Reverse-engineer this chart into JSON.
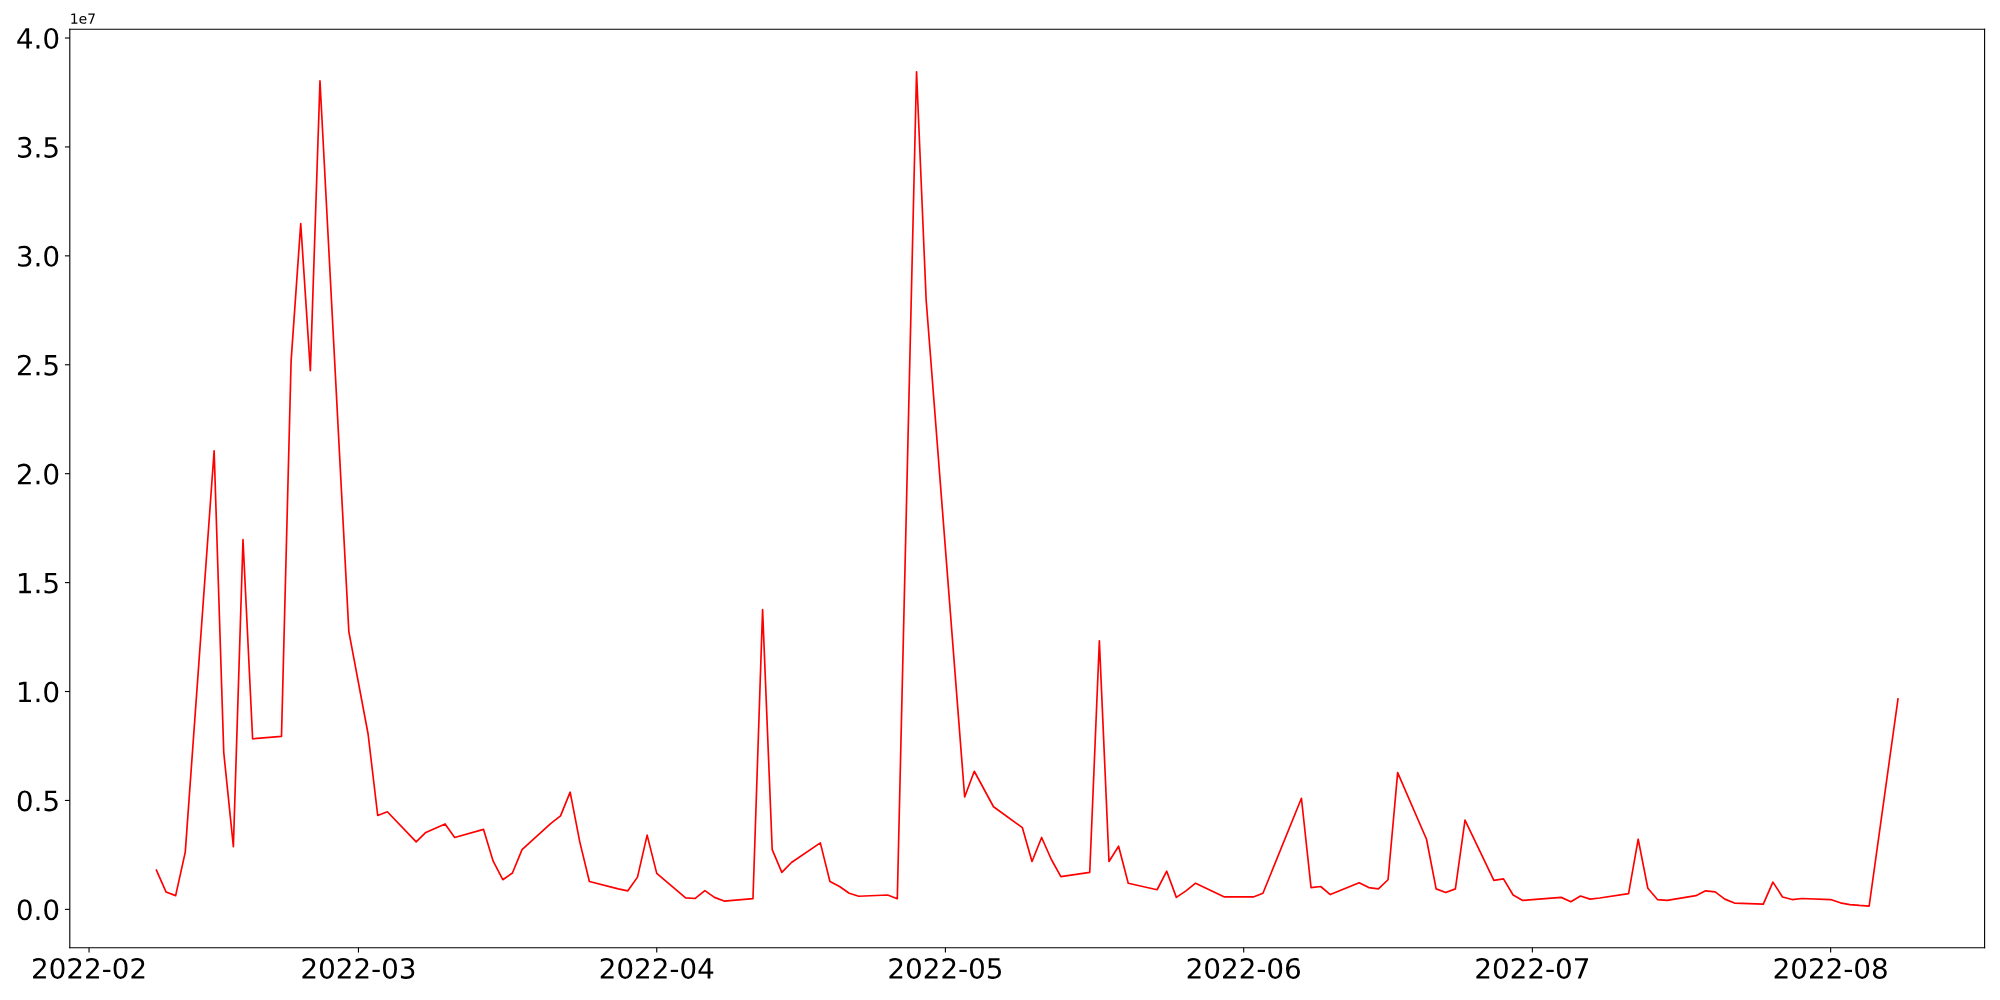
{
  "chart_data": {
    "type": "line",
    "x": [
      "2022-02-08",
      "2022-02-09",
      "2022-02-10",
      "2022-02-11",
      "2022-02-14",
      "2022-02-15",
      "2022-02-16",
      "2022-02-17",
      "2022-02-18",
      "2022-02-21",
      "2022-02-22",
      "2022-02-23",
      "2022-02-24",
      "2022-02-25",
      "2022-02-28",
      "2022-03-02",
      "2022-03-03",
      "2022-03-04",
      "2022-03-07",
      "2022-03-08",
      "2022-03-10",
      "2022-03-11",
      "2022-03-14",
      "2022-03-15",
      "2022-03-16",
      "2022-03-17",
      "2022-03-18",
      "2022-03-21",
      "2022-03-22",
      "2022-03-23",
      "2022-03-24",
      "2022-03-25",
      "2022-03-28",
      "2022-03-29",
      "2022-03-30",
      "2022-03-31",
      "2022-04-01",
      "2022-04-04",
      "2022-04-05",
      "2022-04-06",
      "2022-04-07",
      "2022-04-08",
      "2022-04-11",
      "2022-04-12",
      "2022-04-13",
      "2022-04-14",
      "2022-04-15",
      "2022-04-18",
      "2022-04-19",
      "2022-04-20",
      "2022-04-21",
      "2022-04-22",
      "2022-04-25",
      "2022-04-26",
      "2022-04-28",
      "2022-04-29",
      "2022-05-03",
      "2022-05-04",
      "2022-05-06",
      "2022-05-09",
      "2022-05-10",
      "2022-05-11",
      "2022-05-12",
      "2022-05-13",
      "2022-05-16",
      "2022-05-17",
      "2022-05-18",
      "2022-05-19",
      "2022-05-20",
      "2022-05-23",
      "2022-05-24",
      "2022-05-25",
      "2022-05-26",
      "2022-05-27",
      "2022-05-30",
      "2022-05-31",
      "2022-06-02",
      "2022-06-03",
      "2022-06-07",
      "2022-06-08",
      "2022-06-09",
      "2022-06-10",
      "2022-06-13",
      "2022-06-14",
      "2022-06-15",
      "2022-06-16",
      "2022-06-17",
      "2022-06-20",
      "2022-06-21",
      "2022-06-22",
      "2022-06-23",
      "2022-06-24",
      "2022-06-27",
      "2022-06-28",
      "2022-06-29",
      "2022-06-30",
      "2022-07-01",
      "2022-07-04",
      "2022-07-05",
      "2022-07-06",
      "2022-07-07",
      "2022-07-08",
      "2022-07-11",
      "2022-07-12",
      "2022-07-13",
      "2022-07-14",
      "2022-07-15",
      "2022-07-18",
      "2022-07-19",
      "2022-07-20",
      "2022-07-21",
      "2022-07-22",
      "2022-07-25",
      "2022-07-26",
      "2022-07-27",
      "2022-07-28",
      "2022-07-29",
      "2022-08-01",
      "2022-08-02",
      "2022-08-03",
      "2022-08-04",
      "2022-08-05",
      "2022-08-08"
    ],
    "series": [
      {
        "color": "#ff0000",
        "values": [
          0.18,
          0.08,
          0.063,
          0.263,
          2.105,
          0.72,
          0.288,
          1.697,
          0.783,
          0.794,
          2.518,
          3.148,
          2.473,
          3.803,
          1.275,
          0.805,
          0.431,
          0.448,
          0.31,
          0.353,
          0.392,
          0.33,
          0.367,
          0.221,
          0.136,
          0.167,
          0.274,
          0.395,
          0.429,
          0.538,
          0.31,
          0.128,
          0.094,
          0.085,
          0.148,
          0.341,
          0.165,
          0.053,
          0.05,
          0.086,
          0.055,
          0.038,
          0.049,
          1.376,
          0.274,
          0.17,
          0.215,
          0.305,
          0.128,
          0.105,
          0.074,
          0.06,
          0.066,
          0.049,
          3.845,
          2.796,
          0.516,
          0.634,
          0.471,
          0.375,
          0.22,
          0.33,
          0.23,
          0.15,
          0.17,
          1.233,
          0.22,
          0.29,
          0.12,
          0.09,
          0.175,
          0.055,
          0.085,
          0.12,
          0.057,
          0.058,
          0.057,
          0.074,
          0.51,
          0.1,
          0.105,
          0.068,
          0.122,
          0.1,
          0.094,
          0.136,
          0.628,
          0.322,
          0.094,
          0.077,
          0.094,
          0.41,
          0.133,
          0.14,
          0.066,
          0.041,
          0.045,
          0.055,
          0.035,
          0.061,
          0.047,
          0.052,
          0.072,
          0.322,
          0.097,
          0.045,
          0.041,
          0.063,
          0.085,
          0.08,
          0.047,
          0.029,
          0.024,
          0.125,
          0.057,
          0.045,
          0.05,
          0.045,
          0.03,
          0.022,
          0.018,
          0.015,
          0.966
        ]
      }
    ],
    "xlim": [
      "2022-01-30",
      "2022-08-17"
    ],
    "xticks": [
      "2022-02",
      "2022-03",
      "2022-04",
      "2022-05",
      "2022-06",
      "2022-07",
      "2022-08"
    ],
    "ylim": [
      -0.176,
      4.04
    ],
    "yticks": [
      {
        "value": 0,
        "label": "0.0"
      },
      0.5,
      {
        "value": 1,
        "label": "1.0"
      },
      1.5,
      {
        "value": 2,
        "label": "2.0"
      },
      2.5,
      {
        "value": 3,
        "label": "3.0"
      },
      3.5,
      {
        "value": 4,
        "label": "4.0"
      }
    ],
    "annotations": [
      "1e7"
    ],
    "line_style": "solid",
    "marker": "none",
    "grid": false
  }
}
